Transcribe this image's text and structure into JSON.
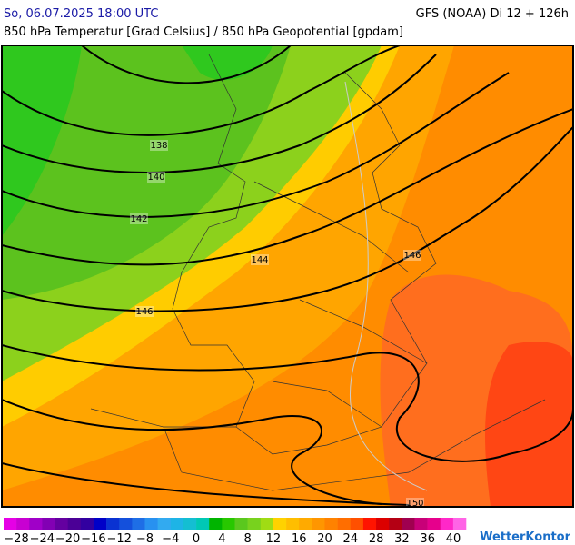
{
  "header": {
    "datetime": "So, 06.07.2025 18:00 UTC",
    "model": "GFS (NOAA) Di 12 + 126h",
    "subtitle": "850 hPa Temperatur [Grad Celsius] / 850 hPa Geopotential [gpdam]"
  },
  "map": {
    "contour_labels": [
      "138",
      "140",
      "142",
      "144",
      "146",
      "146",
      "150"
    ]
  },
  "legend": {
    "ticks": [
      "−28",
      "−24",
      "−20",
      "−16",
      "−12",
      "−8",
      "−4",
      "0",
      "4",
      "8",
      "12",
      "16",
      "20",
      "24",
      "28",
      "32",
      "36",
      "40"
    ]
  },
  "brand": "WetterKontor"
}
